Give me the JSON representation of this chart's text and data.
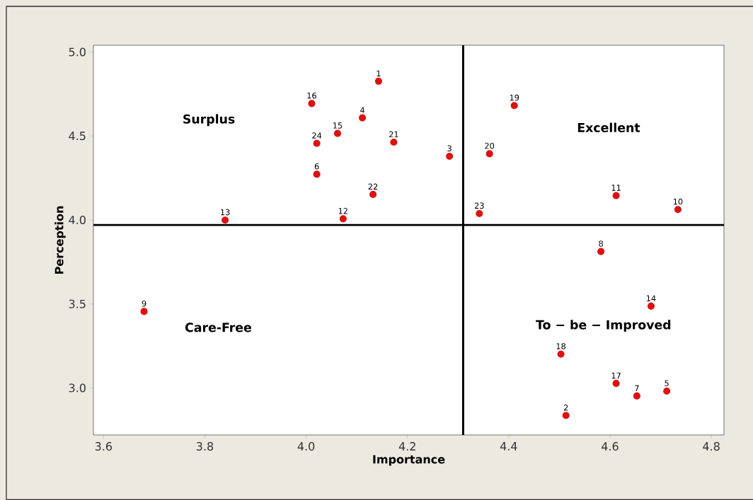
{
  "chart_data": {
    "type": "scatter",
    "xlabel": "Importance",
    "ylabel": "Perception",
    "color": "#dd1111",
    "marker": "circle",
    "grid": false,
    "x": [
      4.143,
      4.513,
      4.283,
      4.111,
      4.712,
      4.021,
      4.653,
      4.582,
      3.68,
      4.734,
      4.612,
      4.073,
      3.84,
      4.681,
      4.062,
      4.011,
      4.612,
      4.503,
      4.411,
      4.362,
      4.173,
      4.132,
      4.342,
      4.021
    ],
    "values": [
      4.826,
      2.836,
      4.379,
      4.608,
      2.981,
      4.272,
      2.952,
      3.812,
      3.455,
      4.062,
      4.145,
      4.007,
      3.999,
      3.487,
      4.515,
      4.693,
      3.027,
      3.201,
      4.681,
      4.394,
      4.463,
      4.152,
      4.038,
      4.456
    ],
    "xlim": [
      3.58,
      4.825
    ],
    "ylim": [
      2.72,
      5.04
    ],
    "xticks": [
      {
        "value": 3.6,
        "label": "3.6"
      },
      {
        "value": 3.8,
        "label": "3.8"
      },
      {
        "value": 4.0,
        "label": "4.0"
      },
      {
        "value": 4.2,
        "label": "4.2"
      },
      {
        "value": 4.4,
        "label": "4.4"
      },
      {
        "value": 4.6,
        "label": "4.6"
      },
      {
        "value": 4.8,
        "label": "4.8"
      }
    ],
    "yticks": [
      {
        "value": 3.0,
        "label": "3.0"
      },
      {
        "value": 3.5,
        "label": "3.5"
      },
      {
        "value": 4.0,
        "label": "4.0"
      },
      {
        "value": 4.5,
        "label": "4.5"
      },
      {
        "value": 5.0,
        "label": "5.0"
      }
    ],
    "ref_lines": [
      {
        "axis": "y",
        "value": 3.97,
        "color": "#000000"
      },
      {
        "axis": "x",
        "value": 4.31,
        "color": "#000000"
      }
    ],
    "annotations": [
      "Surplus",
      "Excellent",
      "Care-Free",
      "To − be − Improved",
      {
        "text": "1",
        "x": 4.143,
        "y": 4.826
      },
      {
        "text": "2",
        "x": 4.513,
        "y": 2.836
      },
      {
        "text": "3",
        "x": 4.283,
        "y": 4.379
      },
      {
        "text": "4",
        "x": 4.111,
        "y": 4.608
      },
      {
        "text": "5",
        "x": 4.712,
        "y": 2.981
      },
      {
        "text": "6",
        "x": 4.021,
        "y": 4.272
      },
      {
        "text": "7",
        "x": 4.653,
        "y": 2.952
      },
      {
        "text": "8",
        "x": 4.582,
        "y": 3.812
      },
      {
        "text": "9",
        "x": 3.68,
        "y": 3.455
      },
      {
        "text": "10",
        "x": 4.734,
        "y": 4.062
      },
      {
        "text": "11",
        "x": 4.612,
        "y": 4.145
      },
      {
        "text": "12",
        "x": 4.073,
        "y": 4.007
      },
      {
        "text": "13",
        "x": 3.84,
        "y": 3.999
      },
      {
        "text": "14",
        "x": 4.681,
        "y": 3.487
      },
      {
        "text": "15",
        "x": 4.062,
        "y": 4.515
      },
      {
        "text": "16",
        "x": 4.011,
        "y": 4.693
      },
      {
        "text": "17",
        "x": 4.612,
        "y": 3.027
      },
      {
        "text": "18",
        "x": 4.503,
        "y": 3.201
      },
      {
        "text": "19",
        "x": 4.411,
        "y": 4.681
      },
      {
        "text": "20",
        "x": 4.362,
        "y": 4.394
      },
      {
        "text": "21",
        "x": 4.173,
        "y": 4.463
      },
      {
        "text": "22",
        "x": 4.132,
        "y": 4.152
      },
      {
        "text": "23",
        "x": 4.342,
        "y": 4.038
      },
      {
        "text": "24",
        "x": 4.021,
        "y": 4.456
      }
    ]
  }
}
